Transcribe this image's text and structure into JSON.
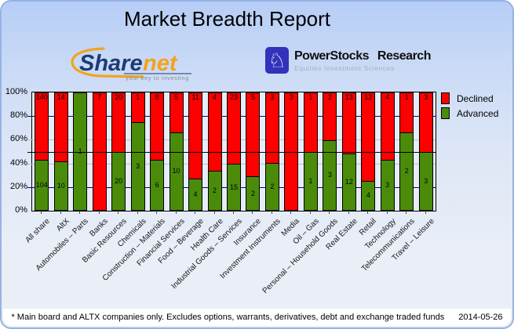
{
  "title": "Market Breadth Report",
  "logos": {
    "sharenet": {
      "name_part1": "Share",
      "name_part2": "net",
      "tagline": "your key to investing",
      "navy": "#1c3a75",
      "orange": "#f2a31c",
      "tagline_color": "#8a8f98"
    },
    "powerstocks": {
      "name": "PowerStocks Research",
      "tagline": "Equities Investment Sciences",
      "icon": "chess-knight-icon",
      "brand_color": "#3232bb"
    }
  },
  "chart_data": {
    "type": "bar",
    "stacked": true,
    "title": "Market Breadth Report",
    "ylabel": "",
    "xlabel": "",
    "ylim": [
      0,
      100
    ],
    "ylabel_ticks": [
      "100%",
      "80%",
      "60%",
      "40%",
      "20%",
      "0%"
    ],
    "legend_position": "top-right",
    "reference_line_pct": 50,
    "gridlines": [
      {
        "pct": 80,
        "color": "#000080",
        "front": false
      },
      {
        "pct": 60,
        "color": "#b9c0cc",
        "front": false
      },
      {
        "pct": 50,
        "color": "#000000",
        "front": true
      },
      {
        "pct": 40,
        "color": "#b9c0cc",
        "front": false
      },
      {
        "pct": 20,
        "color": "#000080",
        "front": false
      }
    ],
    "categories": [
      "All share",
      "AltX",
      "Automobiles – Parts",
      "Banks",
      "Basic Resources",
      "Chemicals",
      "Construction – Materials",
      "Financial Services",
      "Food – Beverage",
      "Health Care",
      "Industrial Goods – Services",
      "Insurance",
      "Investment Instruments",
      "Media",
      "Oil – Gas",
      "Personal – Household Goods",
      "Real Estate",
      "Retail",
      "Technology",
      "Telecommunications",
      "Travel – Leisure"
    ],
    "series": [
      {
        "name": "Declined",
        "color": "#fd0000",
        "counts": [
          140,
          14,
          0,
          7,
          20,
          1,
          8,
          5,
          11,
          4,
          23,
          5,
          3,
          3,
          1,
          2,
          13,
          12,
          4,
          1,
          3
        ]
      },
      {
        "name": "Advanced",
        "color": "#4a8c0a",
        "counts": [
          104,
          10,
          1,
          0,
          20,
          3,
          6,
          10,
          4,
          2,
          15,
          2,
          2,
          0,
          1,
          3,
          12,
          4,
          3,
          2,
          3
        ]
      }
    ],
    "bar_value_labels": "counts displayed inside each segment (hidden when 0)"
  },
  "footer": {
    "note": "* Main board and ALTX companies only. Excludes options, warrants, derivatives, debt and exchange traded funds",
    "date": "2014-05-26"
  }
}
